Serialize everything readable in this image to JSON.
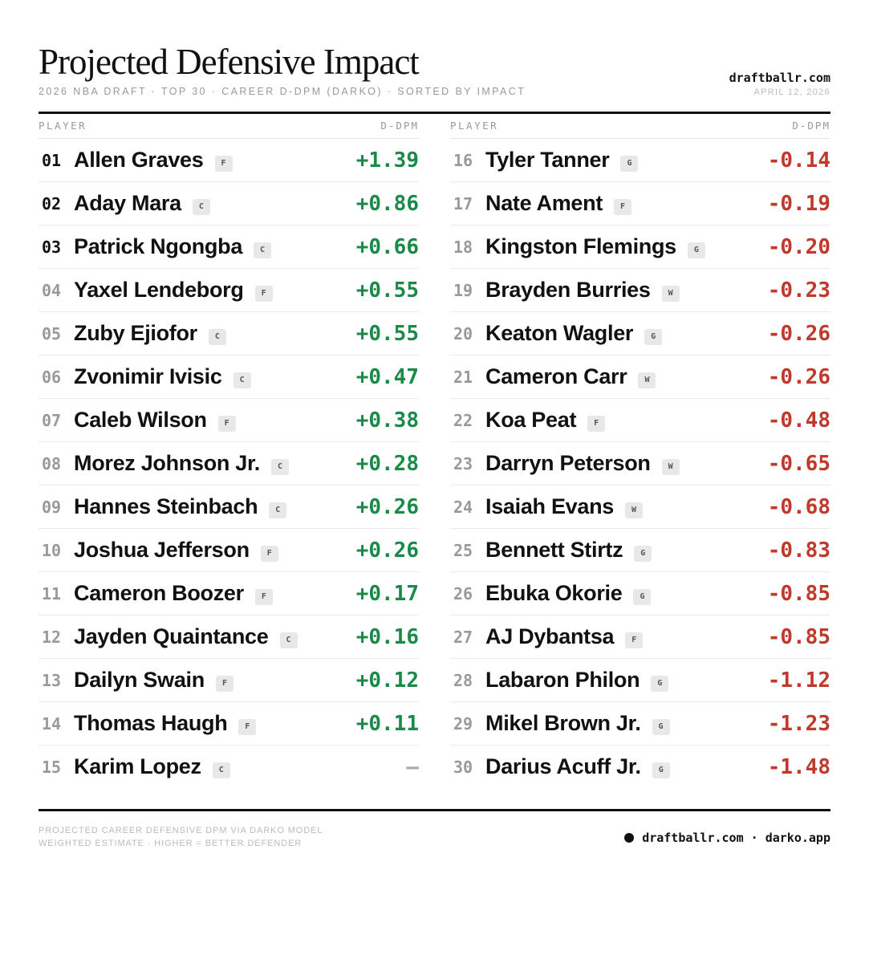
{
  "header": {
    "title": "Projected Defensive Impact",
    "subtitle": "2026 NBA DRAFT · TOP 30 · CAREER D-DPM (DARKO) · SORTED BY IMPACT",
    "brand": "draftballr.com",
    "date": "APRIL 12, 2026"
  },
  "columns": {
    "player_label": "PLAYER",
    "value_label": "D-DPM"
  },
  "colors": {
    "positive": "#1a8a48",
    "negative": "#c0392b",
    "neutral": "#aaaaaa"
  },
  "left_players": [
    {
      "rank": "01",
      "name": "Allen Graves",
      "pos": "F",
      "value": "+1.39",
      "sign": "pos",
      "top": true
    },
    {
      "rank": "02",
      "name": "Aday Mara",
      "pos": "C",
      "value": "+0.86",
      "sign": "pos",
      "top": true
    },
    {
      "rank": "03",
      "name": "Patrick Ngongba",
      "pos": "C",
      "value": "+0.66",
      "sign": "pos",
      "top": true
    },
    {
      "rank": "04",
      "name": "Yaxel Lendeborg",
      "pos": "F",
      "value": "+0.55",
      "sign": "pos",
      "top": false
    },
    {
      "rank": "05",
      "name": "Zuby Ejiofor",
      "pos": "C",
      "value": "+0.55",
      "sign": "pos",
      "top": false
    },
    {
      "rank": "06",
      "name": "Zvonimir Ivisic",
      "pos": "C",
      "value": "+0.47",
      "sign": "pos",
      "top": false
    },
    {
      "rank": "07",
      "name": "Caleb Wilson",
      "pos": "F",
      "value": "+0.38",
      "sign": "pos",
      "top": false
    },
    {
      "rank": "08",
      "name": "Morez Johnson Jr.",
      "pos": "C",
      "value": "+0.28",
      "sign": "pos",
      "top": false
    },
    {
      "rank": "09",
      "name": "Hannes Steinbach",
      "pos": "C",
      "value": "+0.26",
      "sign": "pos",
      "top": false
    },
    {
      "rank": "10",
      "name": "Joshua Jefferson",
      "pos": "F",
      "value": "+0.26",
      "sign": "pos",
      "top": false
    },
    {
      "rank": "11",
      "name": "Cameron Boozer",
      "pos": "F",
      "value": "+0.17",
      "sign": "pos",
      "top": false
    },
    {
      "rank": "12",
      "name": "Jayden Quaintance",
      "pos": "C",
      "value": "+0.16",
      "sign": "pos",
      "top": false
    },
    {
      "rank": "13",
      "name": "Dailyn Swain",
      "pos": "F",
      "value": "+0.12",
      "sign": "pos",
      "top": false
    },
    {
      "rank": "14",
      "name": "Thomas Haugh",
      "pos": "F",
      "value": "+0.11",
      "sign": "pos",
      "top": false
    },
    {
      "rank": "15",
      "name": "Karim Lopez",
      "pos": "C",
      "value": "—",
      "sign": "nil",
      "top": false
    }
  ],
  "right_players": [
    {
      "rank": "16",
      "name": "Tyler Tanner",
      "pos": "G",
      "value": "-0.14",
      "sign": "neg",
      "top": false
    },
    {
      "rank": "17",
      "name": "Nate Ament",
      "pos": "F",
      "value": "-0.19",
      "sign": "neg",
      "top": false
    },
    {
      "rank": "18",
      "name": "Kingston Flemings",
      "pos": "G",
      "value": "-0.20",
      "sign": "neg",
      "top": false
    },
    {
      "rank": "19",
      "name": "Brayden Burries",
      "pos": "W",
      "value": "-0.23",
      "sign": "neg",
      "top": false
    },
    {
      "rank": "20",
      "name": "Keaton Wagler",
      "pos": "G",
      "value": "-0.26",
      "sign": "neg",
      "top": false
    },
    {
      "rank": "21",
      "name": "Cameron Carr",
      "pos": "W",
      "value": "-0.26",
      "sign": "neg",
      "top": false
    },
    {
      "rank": "22",
      "name": "Koa Peat",
      "pos": "F",
      "value": "-0.48",
      "sign": "neg",
      "top": false
    },
    {
      "rank": "23",
      "name": "Darryn Peterson",
      "pos": "W",
      "value": "-0.65",
      "sign": "neg",
      "top": false
    },
    {
      "rank": "24",
      "name": "Isaiah Evans",
      "pos": "W",
      "value": "-0.68",
      "sign": "neg",
      "top": false
    },
    {
      "rank": "25",
      "name": "Bennett Stirtz",
      "pos": "G",
      "value": "-0.83",
      "sign": "neg",
      "top": false
    },
    {
      "rank": "26",
      "name": "Ebuka Okorie",
      "pos": "G",
      "value": "-0.85",
      "sign": "neg",
      "top": false
    },
    {
      "rank": "27",
      "name": "AJ Dybantsa",
      "pos": "F",
      "value": "-0.85",
      "sign": "neg",
      "top": false
    },
    {
      "rank": "28",
      "name": "Labaron Philon",
      "pos": "G",
      "value": "-1.12",
      "sign": "neg",
      "top": false
    },
    {
      "rank": "29",
      "name": "Mikel Brown Jr.",
      "pos": "G",
      "value": "-1.23",
      "sign": "neg",
      "top": false
    },
    {
      "rank": "30",
      "name": "Darius Acuff Jr.",
      "pos": "G",
      "value": "-1.48",
      "sign": "neg",
      "top": false
    }
  ],
  "footer": {
    "note_line1": "PROJECTED CAREER DEFENSIVE DPM VIA DARKO MODEL",
    "note_line2": "WEIGHTED ESTIMATE · HIGHER = BETTER DEFENDER",
    "links": "draftballr.com · darko.app"
  }
}
